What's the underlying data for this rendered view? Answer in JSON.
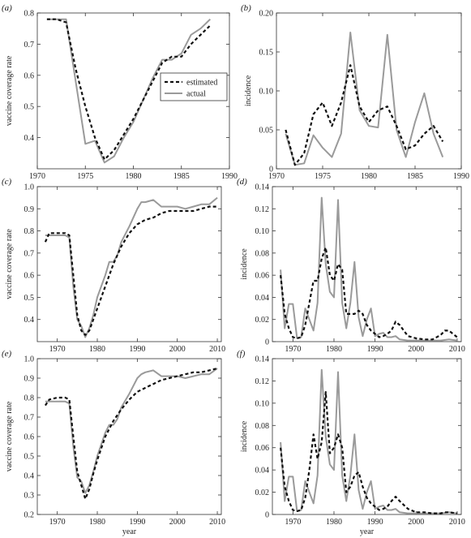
{
  "figure": {
    "styles": {
      "estimated": {
        "color": "#111111",
        "dash": "4,3",
        "width": 2.2
      },
      "actual": {
        "color": "#9a9a9a",
        "dash": "",
        "width": 2.0
      }
    },
    "legend": {
      "estimated": "estimated",
      "actual": "actual"
    }
  },
  "chart_data": [
    {
      "id": "a",
      "panel_label": "(a)",
      "type": "line",
      "xlabel": "",
      "ylabel": "vaccine coverage rate",
      "xlim": [
        1970,
        1990
      ],
      "ylim": [
        0.3,
        0.8
      ],
      "xticks": [
        1970,
        1975,
        1980,
        1985,
        1990
      ],
      "yticks": [
        0.4,
        0.5,
        0.6,
        0.7,
        0.8
      ],
      "ytick_labels": [
        "0.4",
        "0.5",
        "0.6",
        "0.7",
        "0.8"
      ],
      "legend": {
        "position": "center-right"
      },
      "series": [
        {
          "name": "estimated",
          "style": "estimated",
          "x": [
            1971,
            1972,
            1973,
            1974,
            1975,
            1976,
            1977,
            1978,
            1979,
            1980,
            1981,
            1982,
            1983,
            1984,
            1985,
            1986,
            1987,
            1988
          ],
          "y": [
            0.78,
            0.78,
            0.77,
            0.62,
            0.5,
            0.4,
            0.33,
            0.36,
            0.41,
            0.46,
            0.52,
            0.58,
            0.64,
            0.66,
            0.66,
            0.7,
            0.73,
            0.76
          ]
        },
        {
          "name": "actual",
          "style": "actual",
          "x": [
            1971,
            1972,
            1973,
            1974,
            1975,
            1976,
            1977,
            1978,
            1979,
            1980,
            1981,
            1982,
            1983,
            1984,
            1985,
            1986,
            1987,
            1988
          ],
          "y": [
            0.78,
            0.78,
            0.78,
            0.58,
            0.38,
            0.39,
            0.32,
            0.34,
            0.4,
            0.45,
            0.52,
            0.59,
            0.65,
            0.65,
            0.67,
            0.73,
            0.75,
            0.78
          ]
        }
      ]
    },
    {
      "id": "b",
      "panel_label": "(b)",
      "type": "line",
      "xlabel": "",
      "ylabel": "incidence",
      "xlim": [
        1970,
        1990
      ],
      "ylim": [
        0,
        0.2
      ],
      "xticks": [
        1970,
        1975,
        1980,
        1985,
        1990
      ],
      "yticks": [
        0,
        0.05,
        0.1,
        0.15,
        0.2
      ],
      "ytick_labels": [
        "0",
        "0.05",
        "0.10",
        "0.15",
        "0.20"
      ],
      "series": [
        {
          "name": "estimated",
          "style": "estimated",
          "x": [
            1971,
            1972,
            1973,
            1974,
            1975,
            1976,
            1977,
            1978,
            1979,
            1980,
            1981,
            1982,
            1983,
            1984,
            1985,
            1986,
            1987,
            1988
          ],
          "y": [
            0.05,
            0.005,
            0.02,
            0.07,
            0.085,
            0.055,
            0.085,
            0.133,
            0.08,
            0.06,
            0.075,
            0.08,
            0.055,
            0.025,
            0.03,
            0.045,
            0.055,
            0.035
          ]
        },
        {
          "name": "actual",
          "style": "actual",
          "x": [
            1971,
            1972,
            1973,
            1974,
            1975,
            1976,
            1977,
            1978,
            1979,
            1980,
            1981,
            1982,
            1983,
            1984,
            1985,
            1986,
            1987,
            1988
          ],
          "y": [
            0.045,
            0.005,
            0.007,
            0.043,
            0.027,
            0.015,
            0.045,
            0.175,
            0.075,
            0.055,
            0.053,
            0.172,
            0.05,
            0.015,
            0.06,
            0.097,
            0.045,
            0.015
          ]
        }
      ]
    },
    {
      "id": "c",
      "panel_label": "(c)",
      "type": "line",
      "xlabel": "",
      "ylabel": "vaccine coverage rate",
      "xlim": [
        1965,
        2011
      ],
      "ylim": [
        0.3,
        1.0
      ],
      "xticks": [
        1970,
        1980,
        1990,
        2000,
        2010
      ],
      "yticks": [
        0.4,
        0.5,
        0.6,
        0.7,
        0.8,
        0.9,
        1.0
      ],
      "ytick_labels": [
        "0.4",
        "0.5",
        "0.6",
        "0.7",
        "0.8",
        "0.9",
        "1.0"
      ],
      "series": [
        {
          "name": "estimated",
          "style": "estimated",
          "x": [
            1967,
            1968,
            1970,
            1972,
            1973,
            1974,
            1975,
            1976,
            1977,
            1978,
            1979,
            1980,
            1982,
            1984,
            1986,
            1988,
            1990,
            1992,
            1994,
            1996,
            1998,
            2000,
            2002,
            2004,
            2006,
            2008,
            2010
          ],
          "y": [
            0.75,
            0.79,
            0.79,
            0.79,
            0.78,
            0.6,
            0.42,
            0.35,
            0.33,
            0.35,
            0.4,
            0.45,
            0.55,
            0.65,
            0.73,
            0.79,
            0.83,
            0.85,
            0.86,
            0.88,
            0.89,
            0.89,
            0.89,
            0.89,
            0.9,
            0.91,
            0.91
          ]
        },
        {
          "name": "actual",
          "style": "actual",
          "x": [
            1967,
            1968,
            1970,
            1972,
            1973,
            1974,
            1975,
            1976,
            1977,
            1978,
            1979,
            1980,
            1982,
            1983,
            1984,
            1985,
            1986,
            1988,
            1990,
            1991,
            1992,
            1994,
            1996,
            1998,
            2000,
            2002,
            2004,
            2006,
            2008,
            2010
          ],
          "y": [
            0.78,
            0.78,
            0.78,
            0.78,
            0.77,
            0.55,
            0.4,
            0.37,
            0.32,
            0.36,
            0.42,
            0.5,
            0.6,
            0.66,
            0.66,
            0.69,
            0.75,
            0.82,
            0.9,
            0.93,
            0.93,
            0.94,
            0.91,
            0.91,
            0.91,
            0.9,
            0.91,
            0.92,
            0.92,
            0.95
          ]
        }
      ]
    },
    {
      "id": "d",
      "panel_label": "(d)",
      "type": "line",
      "xlabel": "",
      "ylabel": "incidence",
      "xlim": [
        1965,
        2011
      ],
      "ylim": [
        0,
        0.14
      ],
      "xticks": [
        1970,
        1980,
        1990,
        2000,
        2010
      ],
      "yticks": [
        0,
        0.02,
        0.04,
        0.06,
        0.08,
        0.1,
        0.12,
        0.14
      ],
      "ytick_labels": [
        "0",
        "0.02",
        "0.04",
        "0.06",
        "0.08",
        "0.10",
        "0.12",
        "0.14"
      ],
      "series": [
        {
          "name": "estimated",
          "style": "estimated",
          "x": [
            1967,
            1968,
            1969,
            1970,
            1971,
            1972,
            1973,
            1974,
            1975,
            1976,
            1977,
            1978,
            1979,
            1980,
            1981,
            1982,
            1983,
            1984,
            1985,
            1986,
            1987,
            1988,
            1989,
            1990,
            1991,
            1992,
            1993,
            1994,
            1995,
            1996,
            1998,
            2000,
            2002,
            2004,
            2006,
            2007,
            2008,
            2010
          ],
          "y": [
            0.06,
            0.025,
            0.012,
            0.004,
            0.003,
            0.004,
            0.015,
            0.035,
            0.055,
            0.055,
            0.075,
            0.085,
            0.06,
            0.055,
            0.07,
            0.065,
            0.025,
            0.025,
            0.025,
            0.028,
            0.025,
            0.015,
            0.01,
            0.007,
            0.004,
            0.005,
            0.007,
            0.01,
            0.018,
            0.015,
            0.005,
            0.003,
            0.002,
            0.002,
            0.006,
            0.01,
            0.01,
            0.004
          ]
        },
        {
          "name": "actual",
          "style": "actual",
          "x": [
            1967,
            1968,
            1969,
            1970,
            1971,
            1972,
            1973,
            1974,
            1975,
            1976,
            1977,
            1978,
            1979,
            1980,
            1981,
            1982,
            1983,
            1984,
            1985,
            1986,
            1987,
            1988,
            1989,
            1990,
            1991,
            1992,
            1993,
            1994,
            1995,
            1996,
            1998,
            2000,
            2002,
            2004,
            2006,
            2008,
            2010
          ],
          "y": [
            0.065,
            0.012,
            0.034,
            0.034,
            0.003,
            0.004,
            0.03,
            0.02,
            0.01,
            0.035,
            0.13,
            0.07,
            0.045,
            0.04,
            0.128,
            0.035,
            0.012,
            0.035,
            0.072,
            0.022,
            0.005,
            0.02,
            0.03,
            0.005,
            0.007,
            0.008,
            0.004,
            0.004,
            0.005,
            0.002,
            0.001,
            0.001,
            0.001,
            0.001,
            0.001,
            0.002,
            0.001
          ]
        }
      ]
    },
    {
      "id": "e",
      "panel_label": "(e)",
      "type": "line",
      "xlabel": "year",
      "ylabel": "vaccine coverage rate",
      "xlim": [
        1965,
        2011
      ],
      "ylim": [
        0.2,
        1.0
      ],
      "xticks": [
        1970,
        1980,
        1990,
        2000,
        2010
      ],
      "yticks": [
        0.2,
        0.3,
        0.4,
        0.5,
        0.6,
        0.7,
        0.8,
        0.9,
        1.0
      ],
      "ytick_labels": [
        "0.2",
        "0.3",
        "0.4",
        "0.5",
        "0.6",
        "0.7",
        "0.8",
        "0.9",
        "1.0"
      ],
      "series": [
        {
          "name": "estimated",
          "style": "estimated",
          "x": [
            1967,
            1968,
            1970,
            1972,
            1973,
            1974,
            1975,
            1976,
            1977,
            1978,
            1979,
            1980,
            1982,
            1984,
            1986,
            1988,
            1990,
            1992,
            1994,
            1996,
            1998,
            2000,
            2002,
            2004,
            2006,
            2008,
            2010
          ],
          "y": [
            0.76,
            0.79,
            0.8,
            0.8,
            0.79,
            0.6,
            0.42,
            0.35,
            0.28,
            0.33,
            0.41,
            0.48,
            0.6,
            0.68,
            0.74,
            0.79,
            0.83,
            0.85,
            0.87,
            0.89,
            0.9,
            0.91,
            0.92,
            0.93,
            0.93,
            0.94,
            0.95
          ]
        },
        {
          "name": "actual",
          "style": "actual",
          "x": [
            1967,
            1968,
            1970,
            1972,
            1973,
            1974,
            1975,
            1976,
            1977,
            1978,
            1979,
            1980,
            1982,
            1983,
            1984,
            1985,
            1986,
            1988,
            1990,
            1991,
            1992,
            1994,
            1996,
            1998,
            2000,
            2002,
            2004,
            2006,
            2008,
            2010
          ],
          "y": [
            0.78,
            0.78,
            0.78,
            0.78,
            0.77,
            0.55,
            0.39,
            0.37,
            0.31,
            0.35,
            0.42,
            0.5,
            0.62,
            0.66,
            0.66,
            0.69,
            0.75,
            0.82,
            0.9,
            0.92,
            0.93,
            0.94,
            0.91,
            0.91,
            0.91,
            0.9,
            0.91,
            0.92,
            0.92,
            0.95
          ]
        }
      ]
    },
    {
      "id": "f",
      "panel_label": "(f)",
      "type": "line",
      "xlabel": "year",
      "ylabel": "incidence",
      "xlim": [
        1965,
        2011
      ],
      "ylim": [
        0,
        0.14
      ],
      "xticks": [
        1970,
        1980,
        1990,
        2000,
        2010
      ],
      "yticks": [
        0,
        0.02,
        0.04,
        0.06,
        0.08,
        0.1,
        0.12,
        0.14
      ],
      "ytick_labels": [
        "0",
        "0.02",
        "0.04",
        "0.06",
        "0.08",
        "0.10",
        "0.12",
        "0.14"
      ],
      "series": [
        {
          "name": "estimated",
          "style": "estimated",
          "x": [
            1967,
            1968,
            1969,
            1970,
            1971,
            1972,
            1973,
            1974,
            1975,
            1976,
            1977,
            1978,
            1979,
            1980,
            1981,
            1982,
            1983,
            1984,
            1985,
            1986,
            1987,
            1988,
            1989,
            1990,
            1991,
            1992,
            1993,
            1994,
            1995,
            1996,
            1998,
            2000,
            2002,
            2004,
            2006,
            2007,
            2008,
            2010
          ],
          "y": [
            0.06,
            0.025,
            0.012,
            0.004,
            0.003,
            0.004,
            0.015,
            0.04,
            0.072,
            0.05,
            0.065,
            0.11,
            0.055,
            0.06,
            0.072,
            0.06,
            0.02,
            0.025,
            0.035,
            0.038,
            0.025,
            0.015,
            0.01,
            0.007,
            0.004,
            0.005,
            0.007,
            0.012,
            0.016,
            0.012,
            0.005,
            0.002,
            0.002,
            0.001,
            0.001,
            0.002,
            0.002,
            0.001
          ]
        },
        {
          "name": "actual",
          "style": "actual",
          "x": [
            1967,
            1968,
            1969,
            1970,
            1971,
            1972,
            1973,
            1974,
            1975,
            1976,
            1977,
            1978,
            1979,
            1980,
            1981,
            1982,
            1983,
            1984,
            1985,
            1986,
            1987,
            1988,
            1989,
            1990,
            1991,
            1992,
            1993,
            1994,
            1995,
            1996,
            1998,
            2000,
            2002,
            2004,
            2006,
            2008,
            2010
          ],
          "y": [
            0.065,
            0.012,
            0.034,
            0.034,
            0.003,
            0.004,
            0.03,
            0.02,
            0.01,
            0.035,
            0.13,
            0.07,
            0.045,
            0.04,
            0.128,
            0.035,
            0.012,
            0.035,
            0.072,
            0.022,
            0.005,
            0.02,
            0.03,
            0.005,
            0.007,
            0.008,
            0.004,
            0.004,
            0.005,
            0.002,
            0.001,
            0.001,
            0.001,
            0.001,
            0.001,
            0.002,
            0.001
          ]
        }
      ]
    }
  ]
}
